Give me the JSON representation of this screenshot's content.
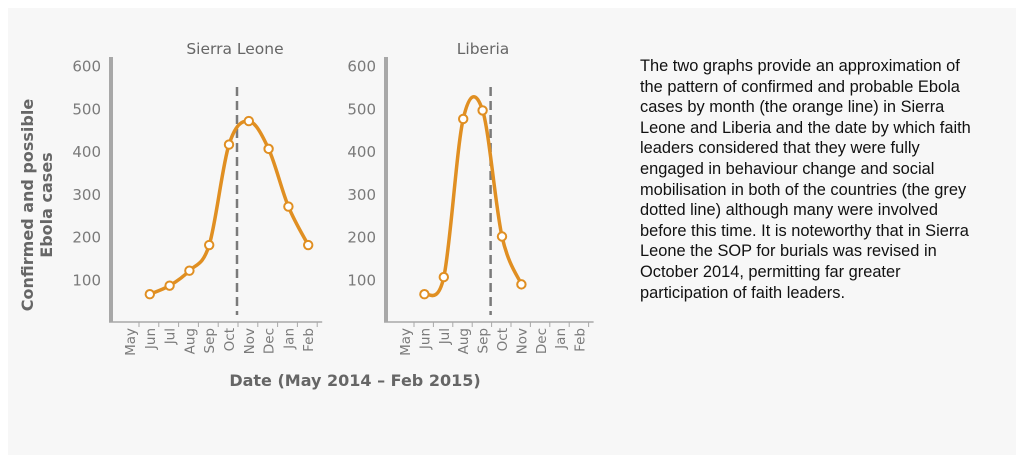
{
  "figure": {
    "ylabel_line1": "Confirmed and possible",
    "ylabel_line2": "Ebola cases",
    "xlabel": "Date (May 2014 – Feb 2015)"
  },
  "description": "The two graphs provide an approximation of the pattern of confirmed and probable Ebola cases by month (the orange line) in Sierra Leone and Liberia and the date by which faith leaders considered that they were fully engaged in behaviour change and social mobilisation in both of the countries (the grey dotted line) although many were involved before this time. It is noteworthy that in Sierra Leone the SOP for burials was revised in October 2014, permitting far greater participation of faith leaders.",
  "colors": {
    "series": "#e08f22",
    "axis": "#a8a8a8",
    "tick_text": "#7a7a7a",
    "dashed_line": "#7a7a7a",
    "label_text": "#666666"
  },
  "chart_data": [
    {
      "type": "line",
      "title": "Sierra Leone",
      "categories": [
        "May",
        "Jun",
        "Jul",
        "Aug",
        "Sep",
        "Oct",
        "Nov",
        "Dec",
        "Jan",
        "Feb"
      ],
      "yticks": [
        100,
        200,
        300,
        400,
        500,
        600
      ],
      "ylim": [
        0,
        600
      ],
      "series": [
        {
          "values": [
            null,
            65,
            85,
            120,
            180,
            415,
            470,
            405,
            270,
            180
          ]
        }
      ],
      "faith_leaders_engaged": "Oct"
    },
    {
      "type": "line",
      "title": "Liberia",
      "categories": [
        "May",
        "Jun",
        "Jul",
        "Aug",
        "Sep",
        "Oct",
        "Nov",
        "Dec",
        "Jan",
        "Feb"
      ],
      "yticks": [
        100,
        200,
        300,
        400,
        500,
        600
      ],
      "ylim": [
        0,
        600
      ],
      "series": [
        {
          "values": [
            null,
            65,
            105,
            475,
            495,
            200,
            88,
            null,
            null,
            null
          ]
        }
      ],
      "faith_leaders_engaged": "Sep"
    }
  ]
}
